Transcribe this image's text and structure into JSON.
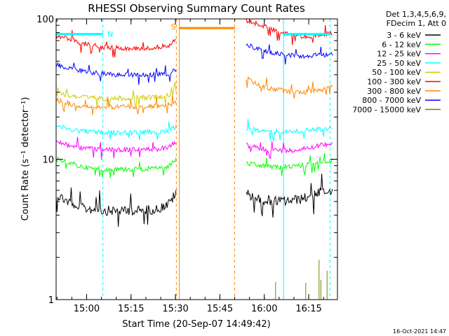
{
  "chart_data": {
    "type": "line",
    "title": "RHESSI Observing Summary Count Rates",
    "xlabel": "Start Time (20-Sep-07 14:49:42)",
    "ylabel": "Count Rate (s⁻¹ detector⁻¹)",
    "yscale": "log",
    "ylim": [
      1,
      100
    ],
    "xlim_minutes": [
      0,
      95
    ],
    "x_ticks": [
      "15:00",
      "15:15",
      "15:30",
      "15:45",
      "16:00",
      "16:15"
    ],
    "x_tick_minutes": [
      10.3,
      25.3,
      40.3,
      55.3,
      70.3,
      85.3
    ],
    "y_ticks": [
      "1",
      "10",
      "100"
    ],
    "legend_header": [
      "Det 1,3,4,5,6,9,",
      "FDecim 1, Att 0"
    ],
    "series": [
      {
        "name": "3 - 6 keV",
        "color": "#000000",
        "x": [
          0,
          4,
          8,
          12,
          16,
          22,
          28,
          34,
          38,
          40.5,
          42,
          63,
          64,
          68,
          72,
          76,
          80,
          84,
          88,
          92,
          93.5
        ],
        "values": [
          5.6,
          5.0,
          4.5,
          4.4,
          4.3,
          4.3,
          4.3,
          4.4,
          4.8,
          5.7,
          null,
          null,
          5.8,
          5.2,
          5.1,
          5.0,
          5.1,
          5.3,
          5.7,
          6.0,
          6.1
        ]
      },
      {
        "name": "6 - 12 keV",
        "color": "#00ff00",
        "x": [
          0,
          4,
          8,
          12,
          16,
          22,
          28,
          34,
          38,
          40.5,
          42,
          63,
          64,
          68,
          72,
          76,
          80,
          84,
          88,
          92,
          93.5
        ],
        "values": [
          10,
          9.5,
          8.9,
          8.6,
          8.5,
          8.5,
          8.5,
          8.6,
          8.9,
          10,
          null,
          null,
          9.4,
          9.0,
          8.9,
          8.8,
          8.9,
          9.1,
          9.3,
          9.6,
          9.8
        ]
      },
      {
        "name": "12 - 25 keV",
        "color": "#ff00ff",
        "x": [
          0,
          4,
          8,
          12,
          16,
          22,
          28,
          34,
          38,
          40.5,
          42,
          63,
          64,
          68,
          72,
          76,
          80,
          84,
          88,
          92,
          93.5
        ],
        "values": [
          13.5,
          12.6,
          12.1,
          11.8,
          11.7,
          11.7,
          11.7,
          11.8,
          12.1,
          13.3,
          null,
          null,
          12.6,
          12.0,
          11.7,
          11.5,
          11.6,
          12.0,
          12.4,
          12.9,
          13.3
        ]
      },
      {
        "name": "25 - 50 keV",
        "color": "#00ffff",
        "x": [
          0,
          4,
          8,
          12,
          16,
          22,
          28,
          34,
          38,
          40.5,
          42,
          63,
          64,
          68,
          72,
          76,
          80,
          84,
          88,
          92,
          93.5
        ],
        "values": [
          17.4,
          16.4,
          16.0,
          15.7,
          15.5,
          15.5,
          15.5,
          15.7,
          16.0,
          17.0,
          null,
          null,
          16.5,
          16.0,
          15.8,
          15.7,
          15.8,
          16.0,
          16.3,
          16.6,
          16.9
        ]
      },
      {
        "name": "50 - 100 keV",
        "color": "#cccc00",
        "x": [
          0,
          4,
          8,
          12,
          16,
          22,
          28,
          34,
          38,
          40.5,
          42
        ],
        "values": [
          29.5,
          28.5,
          27.8,
          27.3,
          27.0,
          27.2,
          27.5,
          27.8,
          28.5,
          30.5,
          null
        ]
      },
      {
        "name": "100 - 300 keV",
        "color": "#ff0000",
        "x": [
          0,
          4,
          8,
          12,
          16,
          22,
          28,
          34,
          38,
          40.5,
          42,
          63,
          64,
          68,
          72,
          76,
          80,
          84,
          88,
          92,
          93.5
        ],
        "values": [
          76,
          72,
          68,
          65,
          63,
          62,
          62,
          63,
          65,
          71,
          null,
          null,
          98,
          92,
          86,
          80,
          76,
          75,
          76,
          78,
          80
        ]
      },
      {
        "name": "300 - 800 keV",
        "color": "#ff8800",
        "x": [
          0,
          4,
          8,
          12,
          16,
          22,
          28,
          34,
          38,
          40.5,
          42,
          63,
          64,
          68,
          72,
          76,
          80,
          84,
          88,
          92,
          93.5
        ],
        "values": [
          26.5,
          25.0,
          24.2,
          23.8,
          23.6,
          23.6,
          23.6,
          23.8,
          24.3,
          25.8,
          null,
          null,
          38,
          34,
          32,
          31,
          30,
          30,
          31,
          32,
          33
        ]
      },
      {
        "name": "800 - 7000 keV",
        "color": "#0000ff",
        "x": [
          0,
          4,
          8,
          12,
          16,
          22,
          28,
          34,
          38,
          40.5,
          42,
          63,
          64,
          68,
          72,
          76,
          80,
          84,
          88,
          92,
          93.5
        ],
        "values": [
          47,
          45,
          43,
          41.5,
          40.5,
          40,
          40,
          40.2,
          41,
          43,
          null,
          null,
          67,
          61,
          58,
          56,
          55,
          54.5,
          55,
          56,
          57
        ]
      },
      {
        "name": "7000 - 15000 keV",
        "color": "#808000",
        "x": [
          0,
          40,
          42,
          63,
          64,
          88,
          90,
          92,
          93.5
        ],
        "values": [
          1,
          1,
          null,
          null,
          1,
          1,
          1,
          1,
          1
        ]
      }
    ],
    "annotations": [
      {
        "label": "N",
        "color": "#00ffff"
      },
      {
        "label": "S",
        "color": "#ff8800"
      }
    ],
    "saa_level": 86
  },
  "footer": {
    "timestamp": "16-Oct-2021 14:47"
  }
}
